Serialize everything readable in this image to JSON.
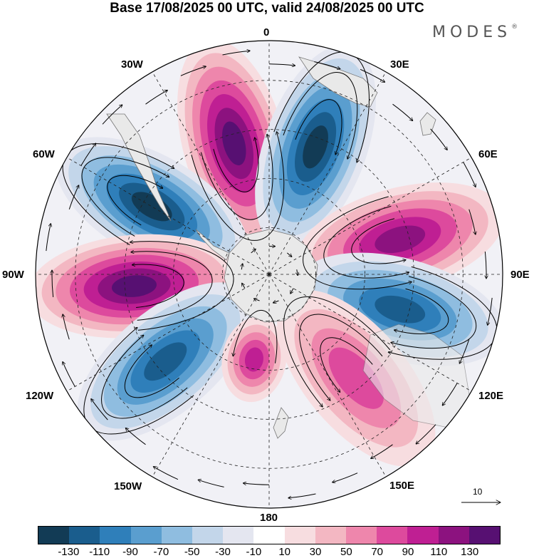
{
  "title": "Base 17/08/2025 00 UTC, valid 24/08/2025 00 UTC",
  "logo": "MODES",
  "logo_mark": "®",
  "longitude_labels": {
    "top": "0",
    "e30": "30E",
    "e60": "60E",
    "e90": "90E",
    "e120": "120E",
    "e150": "150E",
    "bottom": "180",
    "w150": "150W",
    "w120": "120W",
    "w90": "90W",
    "w60": "60W",
    "w30": "30W"
  },
  "vector_reference": "10",
  "colorbar": {
    "colors": [
      "#123b55",
      "#1a5d8d",
      "#2f7fba",
      "#5a9ecf",
      "#8fbde0",
      "#c3d6ea",
      "#e4e6f0",
      "#ffffff",
      "#f7dde0",
      "#f3b7c2",
      "#ee86ac",
      "#dd4a9d",
      "#bf1f93",
      "#8c127f",
      "#571072"
    ],
    "tick_labels": [
      "-130",
      "-110",
      "-90",
      "-70",
      "-50",
      "-30",
      "-10",
      "10",
      "30",
      "50",
      "70",
      "90",
      "110",
      "130"
    ]
  },
  "map_data": {
    "projection": "south-polar-stereographic",
    "center_latitude": -90,
    "anomaly_centers": [
      {
        "name": "magenta-south-atlantic",
        "lon": -15,
        "sign": "positive",
        "value": 130
      },
      {
        "name": "blue-east-atlantic",
        "lon": 20,
        "sign": "negative",
        "value": -130
      },
      {
        "name": "magenta-indian",
        "lon": 75,
        "sign": "positive",
        "value": 120
      },
      {
        "name": "blue-south-indian",
        "lon": 105,
        "sign": "negative",
        "value": -110
      },
      {
        "name": "magenta-tasman",
        "lon": 140,
        "sign": "positive",
        "value": 70
      },
      {
        "name": "blue-east-pacific",
        "lon": -60,
        "sign": "negative",
        "value": -130
      },
      {
        "name": "magenta-pacific",
        "lon": -95,
        "sign": "positive",
        "value": 130
      },
      {
        "name": "blue-south-pacific",
        "lon": -130,
        "sign": "negative",
        "value": -110
      },
      {
        "name": "magenta-ross",
        "lon": -170,
        "sign": "positive",
        "value": 90
      }
    ]
  }
}
